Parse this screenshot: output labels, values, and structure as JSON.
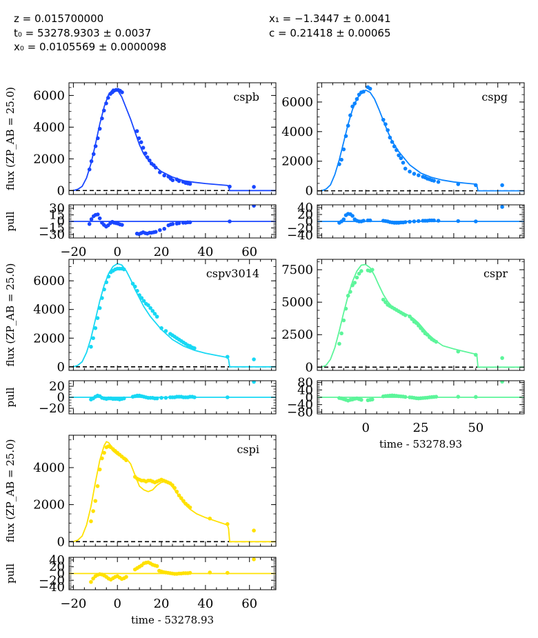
{
  "header": {
    "left": [
      "z = 0.015700000",
      "t₀ = 53278.9303 ± 0.0037",
      "x₀ = 0.0105569 ± 0.0000098"
    ],
    "right": [
      "x₁ = −1.3447 ± 0.0041",
      "c = 0.21418 ± 0.00065"
    ]
  },
  "chart_data": [
    {
      "type": "scatter",
      "band": "cspb",
      "color": "#1946ff",
      "xlim": [
        -22,
        72
      ],
      "ylim": [
        -250,
        6800
      ],
      "yticks": [
        0,
        2000,
        4000,
        6000
      ],
      "ylabel": "flux (ZP_AB = 25.0)",
      "xticks": [
        -20,
        0,
        20,
        40,
        60
      ],
      "xlabel": "",
      "model_x": [
        -20,
        -18,
        -16,
        -14,
        -12,
        -10,
        -8,
        -6,
        -4,
        -2,
        0,
        2,
        4,
        6,
        8,
        10,
        12,
        15,
        20,
        25,
        30,
        35,
        40,
        45,
        50,
        50.5,
        51,
        72
      ],
      "model_y": [
        0,
        80,
        260,
        800,
        1700,
        2900,
        4200,
        5300,
        6050,
        6400,
        6350,
        5900,
        5200,
        4500,
        3700,
        2900,
        2300,
        1750,
        1200,
        850,
        620,
        520,
        440,
        380,
        320,
        250,
        0,
        0
      ],
      "points_x": [
        -12.7,
        -11.8,
        -10.8,
        -9.9,
        -8.9,
        -8.0,
        -7.0,
        -6.1,
        -5.1,
        -4.2,
        -3.2,
        -2.3,
        -1.5,
        -0.6,
        0.3,
        1.2,
        2.1,
        8.9,
        9.8,
        10.8,
        11.7,
        12.7,
        13.6,
        14.6,
        15.5,
        16.5,
        17.4,
        19.3,
        21.3,
        23.2,
        24.2,
        25.1,
        27.0,
        28.0,
        29.9,
        31.0,
        32.0,
        33.0,
        51.0,
        62.0
      ],
      "points_y": [
        1330,
        1850,
        2300,
        2800,
        3300,
        3900,
        4550,
        5050,
        5500,
        5850,
        6100,
        6200,
        6300,
        6350,
        6350,
        6300,
        6200,
        3750,
        3300,
        3050,
        2700,
        2350,
        2100,
        1900,
        1700,
        1600,
        1450,
        1150,
        950,
        880,
        750,
        650,
        700,
        600,
        550,
        480,
        450,
        420,
        250,
        230
      ],
      "pull_ylim": [
        -38,
        38
      ],
      "pull_yticks": [
        -30,
        -15,
        0,
        15,
        30
      ],
      "pull_y": [
        -6,
        5,
        12,
        15,
        16,
        7,
        -3,
        -8,
        -12,
        -9,
        -4,
        -1,
        -3,
        -4,
        -5,
        -7,
        -8,
        -28,
        -29,
        -27,
        -25,
        -27,
        -28,
        -26,
        -26,
        -25,
        -24,
        -20,
        -17,
        -9,
        -7,
        -6,
        -5,
        -4,
        -3,
        -3,
        -2,
        -2,
        0,
        36
      ],
      "ylabel_pull": "pull"
    },
    {
      "type": "scatter",
      "band": "cspg",
      "color": "#0a84ff",
      "xlim": [
        -22,
        72
      ],
      "ylim": [
        -250,
        7300
      ],
      "yticks": [
        0,
        2000,
        4000,
        6000
      ],
      "ylabel": "",
      "xticks": [],
      "xlabel": "",
      "model_x": [
        -20,
        -18,
        -16,
        -14,
        -12,
        -10,
        -8,
        -6,
        -4,
        -2,
        0,
        2,
        4,
        6,
        8,
        10,
        12,
        15,
        20,
        25,
        30,
        35,
        40,
        45,
        50,
        50.5,
        51,
        72
      ],
      "model_y": [
        0,
        120,
        400,
        1100,
        2100,
        3300,
        4500,
        5500,
        6200,
        6650,
        6800,
        6650,
        6200,
        5500,
        4750,
        4000,
        3350,
        2650,
        1750,
        1200,
        900,
        720,
        600,
        520,
        450,
        350,
        0,
        0
      ],
      "points_x": [
        -12.0,
        -11.0,
        -10.0,
        -9.0,
        -8.0,
        -7.0,
        -6.0,
        -5.0,
        -4.0,
        -3.0,
        -2.0,
        -1.0,
        1.0,
        2.0,
        8.0,
        9.0,
        10.0,
        11.0,
        12.0,
        13.0,
        14.0,
        15.0,
        16.0,
        17.0,
        18.0,
        20.0,
        22.0,
        24.0,
        26.0,
        27.0,
        28.0,
        29.0,
        30.0,
        31.0,
        33.0,
        42.0,
        50.0,
        62.0
      ],
      "points_y": [
        1800,
        2100,
        2800,
        3700,
        4400,
        5100,
        5700,
        5900,
        6200,
        6500,
        6650,
        6700,
        7000,
        6900,
        4800,
        4500,
        4100,
        3600,
        3300,
        3000,
        2750,
        2400,
        2200,
        1900,
        1500,
        1300,
        1150,
        1050,
        950,
        900,
        820,
        780,
        720,
        680,
        600,
        450,
        380,
        380
      ],
      "pull_ylim": [
        -48,
        48
      ],
      "pull_yticks": [
        -40,
        -20,
        0,
        20,
        40
      ],
      "pull_y": [
        -4,
        0,
        6,
        18,
        22,
        21,
        16,
        6,
        2,
        0,
        0,
        2,
        3,
        3,
        2,
        1,
        0,
        -2,
        -3,
        -4,
        -4,
        -4,
        -3,
        -3,
        -2,
        -1,
        0,
        1,
        2,
        2,
        2,
        3,
        3,
        3,
        2,
        1,
        0,
        42
      ],
      "ylabel_pull": ""
    },
    {
      "type": "scatter",
      "band": "cspv3014",
      "color": "#17d8f4",
      "xlim": [
        -22,
        72
      ],
      "ylim": [
        -250,
        7500
      ],
      "yticks": [
        0,
        2000,
        4000,
        6000
      ],
      "ylabel": "flux (ZP_AB = 25.0)",
      "xticks": [],
      "xlabel": "",
      "model_x": [
        -20,
        -18,
        -16,
        -14,
        -12,
        -10,
        -8,
        -6,
        -4,
        -2,
        0,
        2,
        4,
        6,
        8,
        10,
        12,
        15,
        20,
        25,
        30,
        35,
        40,
        45,
        50,
        50.5,
        51,
        72
      ],
      "model_y": [
        0,
        100,
        350,
        1000,
        2000,
        3300,
        4600,
        5700,
        6500,
        7000,
        7200,
        7100,
        6700,
        6100,
        5400,
        4800,
        4200,
        3500,
        2600,
        1900,
        1450,
        1150,
        950,
        800,
        650,
        500,
        0,
        0
      ],
      "points_x": [
        -12.0,
        -11.0,
        -10.0,
        -9.0,
        -8.0,
        -7.0,
        -6.0,
        -5.0,
        -4.0,
        -3.0,
        -2.0,
        -1.0,
        0.0,
        1.0,
        2.0,
        3.0,
        7.0,
        8.0,
        9.0,
        10.0,
        11.0,
        12.0,
        13.0,
        14.0,
        15.0,
        16.0,
        17.0,
        18.0,
        20.0,
        22.0,
        24.0,
        25.0,
        26.0,
        27.0,
        28.0,
        29.0,
        30.0,
        31.0,
        32.0,
        33.0,
        34.0,
        35.0,
        50.0,
        62.0
      ],
      "points_y": [
        1400,
        2000,
        2700,
        3400,
        4100,
        4800,
        5400,
        5900,
        6300,
        6600,
        6700,
        6800,
        6850,
        6850,
        6850,
        6800,
        5800,
        5600,
        5300,
        5000,
        4800,
        4600,
        4400,
        4300,
        4100,
        3900,
        3700,
        3500,
        2700,
        2500,
        2300,
        2200,
        2100,
        2000,
        1900,
        1800,
        1700,
        1600,
        1500,
        1450,
        1350,
        1300,
        700,
        520
      ],
      "pull_ylim": [
        -30,
        30
      ],
      "pull_yticks": [
        -20,
        0,
        20
      ],
      "pull_y": [
        -4,
        -2,
        1,
        3,
        2,
        -1,
        -2,
        -3,
        -2,
        -2,
        -3,
        -3,
        -3,
        -4,
        -3,
        -2,
        1,
        2,
        3,
        3,
        2,
        1,
        0,
        -1,
        -1,
        -1,
        -2,
        -2,
        -1,
        -1,
        0,
        0,
        0,
        1,
        1,
        1,
        0,
        0,
        0,
        1,
        1,
        0,
        0,
        28
      ],
      "ylabel_pull": "pull"
    },
    {
      "type": "scatter",
      "band": "cspr",
      "color": "#5cf59a",
      "xlim": [
        -22,
        72
      ],
      "ylim": [
        -250,
        8300
      ],
      "yticks": [
        0,
        2500,
        5000,
        7500
      ],
      "ylabel": "",
      "xticks": [
        0,
        25,
        50
      ],
      "xlabel": "time - 53278.93",
      "model_x": [
        -20,
        -18,
        -16,
        -14,
        -12,
        -10,
        -8,
        -6,
        -4,
        -2,
        0,
        2,
        4,
        6,
        8,
        10,
        12,
        14,
        16,
        18,
        20,
        22,
        24,
        26,
        28,
        30,
        32,
        35,
        40,
        45,
        50,
        50.5,
        51,
        72
      ],
      "model_y": [
        0,
        150,
        600,
        1500,
        2800,
        4200,
        5500,
        6600,
        7400,
        7850,
        7900,
        7650,
        7050,
        6300,
        5600,
        5050,
        4650,
        4400,
        4250,
        4100,
        3950,
        3700,
        3400,
        3000,
        2600,
        2300,
        2000,
        1650,
        1400,
        1200,
        1000,
        900,
        0,
        0
      ],
      "points_x": [
        -12.0,
        -11.0,
        -10.0,
        -9.0,
        -8.0,
        -7.0,
        -6.0,
        -5.0,
        -4.0,
        -3.0,
        -2.0,
        1.0,
        2.0,
        3.0,
        8.0,
        9.0,
        10.0,
        11.0,
        12.0,
        13.0,
        14.0,
        15.0,
        16.0,
        17.0,
        18.0,
        20.0,
        21.0,
        22.0,
        23.0,
        24.0,
        25.0,
        26.0,
        27.0,
        28.0,
        29.0,
        30.0,
        31.0,
        32.0,
        42.0,
        50.0,
        62.0
      ],
      "points_y": [
        1800,
        2600,
        3600,
        4500,
        5500,
        5800,
        6300,
        6500,
        6900,
        7200,
        7400,
        7450,
        7400,
        7500,
        5200,
        5000,
        4800,
        4700,
        4600,
        4500,
        4400,
        4300,
        4200,
        4100,
        4000,
        3900,
        3700,
        3500,
        3400,
        3200,
        3000,
        2800,
        2600,
        2500,
        2300,
        2150,
        2050,
        1950,
        1200,
        950,
        700
      ],
      "pull_ylim": [
        -90,
        90
      ],
      "pull_yticks": [
        -80,
        -40,
        0,
        40,
        80
      ],
      "pull_y": [
        -4,
        -6,
        -10,
        -14,
        -18,
        -14,
        -12,
        -8,
        -6,
        -10,
        -14,
        -16,
        -14,
        -12,
        5,
        7,
        8,
        9,
        10,
        9,
        8,
        6,
        5,
        4,
        2,
        0,
        -1,
        -3,
        -5,
        -6,
        -5,
        -4,
        -3,
        -2,
        0,
        1,
        2,
        3,
        3,
        2,
        85
      ],
      "ylabel_pull": ""
    },
    {
      "type": "scatter",
      "band": "cspi",
      "color": "#ffe100",
      "xlim": [
        -22,
        72
      ],
      "ylim": [
        -250,
        5750
      ],
      "yticks": [
        0,
        2000,
        4000
      ],
      "ylabel": "flux (ZP_AB = 25.0)",
      "xticks": [
        -20,
        0,
        20,
        40,
        60
      ],
      "xlabel": "time - 53278.93",
      "model_x": [
        -20,
        -18,
        -16,
        -14,
        -12,
        -10,
        -8,
        -6,
        -5,
        -4,
        -3,
        -2,
        0,
        2,
        4,
        6,
        8,
        10,
        12,
        14,
        16,
        18,
        20,
        22,
        24,
        26,
        28,
        30,
        33,
        36,
        40,
        45,
        50,
        50.5,
        51,
        72
      ],
      "model_y": [
        0,
        80,
        300,
        900,
        1900,
        3200,
        4400,
        5200,
        5400,
        5350,
        5200,
        4900,
        4700,
        4600,
        4500,
        4200,
        3600,
        3000,
        2800,
        2700,
        2800,
        3050,
        3200,
        3250,
        3100,
        2800,
        2450,
        2100,
        1750,
        1500,
        1300,
        1100,
        900,
        700,
        0,
        0
      ],
      "points_x": [
        -12.0,
        -11.0,
        -10.0,
        -9.0,
        -8.0,
        -7.0,
        -6.0,
        -5.0,
        -4.0,
        -3.0,
        -2.0,
        -1.0,
        0.0,
        1.0,
        2.0,
        3.0,
        4.0,
        8.0,
        9.0,
        10.0,
        11.0,
        12.0,
        13.0,
        14.0,
        15.0,
        16.0,
        17.0,
        18.0,
        19.0,
        20.0,
        21.0,
        22.0,
        23.0,
        24.0,
        25.0,
        26.0,
        27.0,
        28.0,
        29.0,
        30.0,
        31.0,
        32.0,
        33.0,
        42.0,
        50.0,
        62.0
      ],
      "points_y": [
        1100,
        1650,
        2200,
        3000,
        3900,
        4500,
        4800,
        5100,
        5150,
        5100,
        5000,
        4900,
        4800,
        4700,
        4600,
        4500,
        4400,
        3500,
        3400,
        3350,
        3300,
        3300,
        3250,
        3300,
        3300,
        3250,
        3200,
        3250,
        3300,
        3350,
        3300,
        3250,
        3200,
        3150,
        3050,
        2900,
        2700,
        2500,
        2350,
        2200,
        2050,
        1950,
        1850,
        1250,
        950,
        600
      ],
      "pull_ylim": [
        -48,
        48
      ],
      "pull_yticks": [
        -40,
        -20,
        0,
        20,
        40
      ],
      "pull_y": [
        -25,
        -15,
        -8,
        -4,
        -2,
        -3,
        -6,
        -10,
        -15,
        -18,
        -14,
        -10,
        -8,
        -12,
        -16,
        -14,
        -10,
        12,
        16,
        20,
        24,
        30,
        32,
        33,
        30,
        26,
        24,
        22,
        8,
        6,
        4,
        3,
        2,
        1,
        0,
        -1,
        -1,
        0,
        0,
        1,
        1,
        1,
        2,
        3,
        2,
        42
      ],
      "ylabel_pull": "pull"
    }
  ]
}
